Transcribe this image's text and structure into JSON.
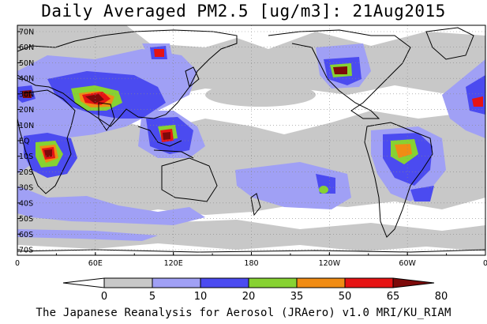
{
  "title": "Daily Averaged PM2.5 [ug/m3]: 21Aug2015",
  "credit": "The Japanese Reanalysis for Aerosol (JRAero) v1.0 MRI/KU_RIAM",
  "lat_labels": [
    "70N",
    "60N",
    "50N",
    "40N",
    "30N",
    "20N",
    "10N",
    "EQ",
    "10S",
    "20S",
    "30S",
    "40S",
    "50S",
    "60S",
    "70S"
  ],
  "lon_labels": [
    "0",
    "60E",
    "120E",
    "180",
    "120W",
    "60W",
    "0"
  ],
  "colorbar": {
    "levels": [
      "0",
      "5",
      "10",
      "20",
      "35",
      "50",
      "65",
      "80"
    ],
    "colors": [
      "#ffffff",
      "#c8c8c8",
      "#a0a0f5",
      "#4b4bf0",
      "#87d232",
      "#f08c14",
      "#e61414",
      "#7d0a0a"
    ]
  },
  "layers": {
    "grey": "#c8c8c8",
    "lblue": "#a0a0f5",
    "blue": "#4b4bf0",
    "green": "#87d232",
    "orange": "#f08c14",
    "red": "#e61414",
    "dark": "#7d0a0a"
  }
}
